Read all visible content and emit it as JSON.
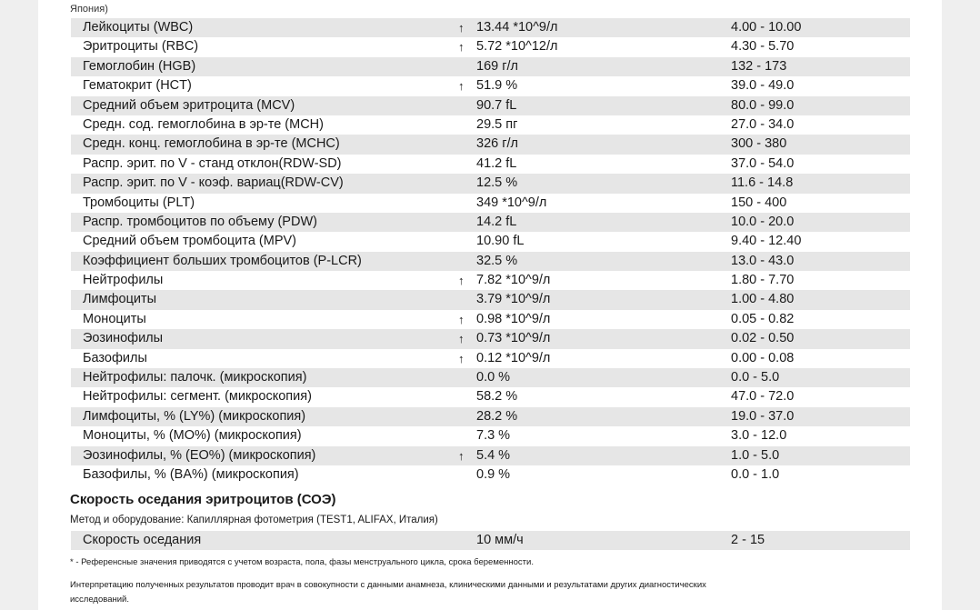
{
  "header_note": "Япония)",
  "rows": [
    {
      "name": "Лейкоциты (WBC)",
      "flag": "↑",
      "value": "13.44 *10^9/л",
      "ref": "4.00 - 10.00"
    },
    {
      "name": "Эритроциты (RBC)",
      "flag": "↑",
      "value": "5.72 *10^12/л",
      "ref": "4.30 - 5.70"
    },
    {
      "name": "Гемоглобин (HGB)",
      "flag": "",
      "value": "169 г/л",
      "ref": "132 - 173"
    },
    {
      "name": "Гематокрит (HCT)",
      "flag": "↑",
      "value": "51.9 %",
      "ref": "39.0 - 49.0"
    },
    {
      "name": "Средний объем эритроцита (MCV)",
      "flag": "",
      "value": "90.7 fL",
      "ref": "80.0 - 99.0"
    },
    {
      "name": "Средн. сод. гемоглобина в эр-те (MCH)",
      "flag": "",
      "value": "29.5 пг",
      "ref": "27.0 - 34.0"
    },
    {
      "name": "Средн. конц. гемоглобина в эр-те (MCHC)",
      "flag": "",
      "value": "326 г/л",
      "ref": "300 - 380"
    },
    {
      "name": "Распр. эрит. по V - станд отклон(RDW-SD)",
      "flag": "",
      "value": "41.2 fL",
      "ref": "37.0 - 54.0"
    },
    {
      "name": "Распр. эрит. по V - коэф. вариац(RDW-CV)",
      "flag": "",
      "value": "12.5 %",
      "ref": "11.6 - 14.8"
    },
    {
      "name": "Тромбоциты (PLT)",
      "flag": "",
      "value": "349 *10^9/л",
      "ref": "150 - 400"
    },
    {
      "name": "Распр. тромбоцитов по объему (PDW)",
      "flag": "",
      "value": "14.2 fL",
      "ref": "10.0 - 20.0"
    },
    {
      "name": "Средний объем тромбоцита (MPV)",
      "flag": "",
      "value": "10.90 fL",
      "ref": "9.40 - 12.40"
    },
    {
      "name": "Коэффициент больших тромбоцитов (P-LCR)",
      "flag": "",
      "value": "32.5 %",
      "ref": "13.0 - 43.0"
    },
    {
      "name": "Нейтрофилы",
      "flag": "↑",
      "value": "7.82 *10^9/л",
      "ref": "1.80 - 7.70"
    },
    {
      "name": "Лимфоциты",
      "flag": "",
      "value": "3.79 *10^9/л",
      "ref": "1.00 - 4.80"
    },
    {
      "name": "Моноциты",
      "flag": "↑",
      "value": "0.98 *10^9/л",
      "ref": "0.05 - 0.82"
    },
    {
      "name": "Эозинофилы",
      "flag": "↑",
      "value": "0.73 *10^9/л",
      "ref": "0.02 - 0.50"
    },
    {
      "name": "Базофилы",
      "flag": "↑",
      "value": "0.12 *10^9/л",
      "ref": "0.00 - 0.08"
    },
    {
      "name": "Нейтрофилы: палочк. (микроскопия)",
      "flag": "",
      "value": "0.0 %",
      "ref": "0.0 - 5.0"
    },
    {
      "name": "Нейтрофилы: сегмент. (микроскопия)",
      "flag": "",
      "value": "58.2 %",
      "ref": "47.0 - 72.0"
    },
    {
      "name": "Лимфоциты, % (LY%) (микроскопия)",
      "flag": "",
      "value": "28.2 %",
      "ref": "19.0 - 37.0"
    },
    {
      "name": "Моноциты, % (MO%) (микроскопия)",
      "flag": "",
      "value": "7.3 %",
      "ref": "3.0 - 12.0"
    },
    {
      "name": "Эозинофилы, % (EO%) (микроскопия)",
      "flag": "↑",
      "value": "5.4 %",
      "ref": "1.0 - 5.0"
    },
    {
      "name": "Базофилы, % (BA%) (микроскопия)",
      "flag": "",
      "value": "0.9 %",
      "ref": "0.0 - 1.0"
    }
  ],
  "esr": {
    "title": "Скорость оседания эритроцитов (СОЭ)",
    "method": "Метод и оборудование:  Капиллярная фотометрия (TEST1, ALIFAX, Италия)",
    "row": {
      "name": "Скорость оседания",
      "flag": "",
      "value": "10 мм/ч",
      "ref": "2 - 15"
    }
  },
  "notes": {
    "reference": "* - Референсные значения приводятся с учетом возраста, пола, фазы менструального цикла, срока беременности.",
    "interpretation": "Интерпретацию полученных результатов проводит врач в совокупности с данными анамнеза, клиническими данными и результатами других диагностических исследований."
  }
}
